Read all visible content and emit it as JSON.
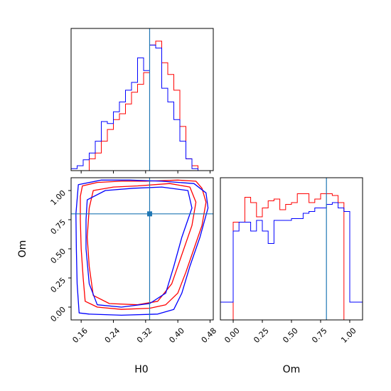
{
  "chart_data": {
    "type": "corner",
    "parameters": [
      "H0",
      "Om"
    ],
    "truth": {
      "H0": 0.33,
      "Om": 0.8
    },
    "colors": {
      "series_a": "#ff0000",
      "series_b": "#0000ff",
      "truth": "#1f77b4"
    },
    "axes": {
      "H0": {
        "label": "H0",
        "range": [
          0.135,
          0.488
        ],
        "ticks": [
          "0.16",
          "0.24",
          "0.32",
          "0.40",
          "0.48"
        ],
        "tick_values": [
          0.16,
          0.24,
          0.32,
          0.4,
          0.48
        ]
      },
      "Om": {
        "label": "Om",
        "range": [
          -0.11,
          1.11
        ],
        "ticks": [
          "0.00",
          "0.25",
          "0.50",
          "0.75",
          "1.00"
        ],
        "tick_values": [
          0.0,
          0.25,
          0.5,
          0.75,
          1.0
        ]
      }
    },
    "hist_H0": {
      "edges": [
        0.135,
        0.15,
        0.165,
        0.18,
        0.195,
        0.21,
        0.225,
        0.24,
        0.255,
        0.27,
        0.285,
        0.3,
        0.315,
        0.33,
        0.345,
        0.36,
        0.375,
        0.39,
        0.405,
        0.42,
        0.435,
        0.45,
        0.465,
        0.488
      ],
      "series": [
        {
          "color": "red",
          "counts": [
            0,
            0,
            0,
            12,
            18,
            30,
            42,
            52,
            58,
            68,
            80,
            88,
            100,
            128,
            132,
            110,
            98,
            82,
            45,
            12,
            5,
            0
          ]
        },
        {
          "color": "blue",
          "counts": [
            2,
            5,
            11,
            18,
            30,
            50,
            48,
            60,
            70,
            82,
            90,
            115,
            102,
            128,
            125,
            84,
            70,
            52,
            30,
            12,
            2,
            0
          ]
        }
      ],
      "ylim": [
        0,
        145
      ]
    },
    "hist_Om": {
      "edges": [
        -0.11,
        -0.05,
        0.0,
        0.05,
        0.1,
        0.15,
        0.2,
        0.25,
        0.3,
        0.35,
        0.4,
        0.45,
        0.5,
        0.55,
        0.6,
        0.65,
        0.7,
        0.75,
        0.8,
        0.85,
        0.9,
        0.95,
        1.0,
        1.05,
        1.11
      ],
      "series": [
        {
          "color": "red",
          "counts": [
            0,
            0,
            55,
            55,
            69,
            66,
            58,
            63,
            67,
            68,
            62,
            65,
            66,
            71,
            71,
            66,
            68,
            71,
            71,
            70,
            66,
            0,
            0,
            0
          ]
        },
        {
          "color": "blue",
          "counts": [
            10,
            10,
            50,
            55,
            55,
            50,
            56,
            50,
            43,
            56,
            56,
            56,
            57,
            57,
            60,
            61,
            63,
            63,
            65,
            66,
            63,
            61,
            10,
            10
          ]
        }
      ],
      "ylim": [
        0,
        80
      ]
    },
    "contours_2d": [
      {
        "color": "red",
        "level": "outer",
        "points": [
          [
            0.163,
            1.04
          ],
          [
            0.2,
            1.07
          ],
          [
            0.26,
            1.08
          ],
          [
            0.32,
            1.08
          ],
          [
            0.4,
            1.09
          ],
          [
            0.445,
            1.08
          ],
          [
            0.46,
            1.02
          ],
          [
            0.47,
            0.9
          ],
          [
            0.46,
            0.7
          ],
          [
            0.44,
            0.5
          ],
          [
            0.42,
            0.3
          ],
          [
            0.4,
            0.12
          ],
          [
            0.37,
            0.02
          ],
          [
            0.33,
            -0.01
          ],
          [
            0.26,
            -0.02
          ],
          [
            0.2,
            0.0
          ],
          [
            0.17,
            0.05
          ],
          [
            0.165,
            0.25
          ],
          [
            0.16,
            0.5
          ],
          [
            0.158,
            0.75
          ],
          [
            0.158,
            0.95
          ],
          [
            0.163,
            1.04
          ]
        ]
      },
      {
        "color": "red",
        "level": "inner",
        "points": [
          [
            0.19,
            1.0
          ],
          [
            0.24,
            1.03
          ],
          [
            0.3,
            1.04
          ],
          [
            0.38,
            1.06
          ],
          [
            0.43,
            1.03
          ],
          [
            0.445,
            0.9
          ],
          [
            0.435,
            0.7
          ],
          [
            0.41,
            0.45
          ],
          [
            0.385,
            0.2
          ],
          [
            0.35,
            0.05
          ],
          [
            0.3,
            0.02
          ],
          [
            0.23,
            0.03
          ],
          [
            0.19,
            0.1
          ],
          [
            0.18,
            0.35
          ],
          [
            0.175,
            0.6
          ],
          [
            0.18,
            0.85
          ],
          [
            0.19,
            1.0
          ]
        ]
      },
      {
        "color": "blue",
        "level": "outer",
        "points": [
          [
            0.153,
            1.05
          ],
          [
            0.21,
            1.09
          ],
          [
            0.28,
            1.09
          ],
          [
            0.36,
            1.08
          ],
          [
            0.44,
            1.06
          ],
          [
            0.47,
            0.98
          ],
          [
            0.475,
            0.85
          ],
          [
            0.455,
            0.6
          ],
          [
            0.43,
            0.35
          ],
          [
            0.41,
            0.12
          ],
          [
            0.39,
            -0.02
          ],
          [
            0.35,
            -0.06
          ],
          [
            0.26,
            -0.07
          ],
          [
            0.18,
            -0.06
          ],
          [
            0.155,
            -0.05
          ],
          [
            0.15,
            0.2
          ],
          [
            0.148,
            0.5
          ],
          [
            0.147,
            0.8
          ],
          [
            0.153,
            1.05
          ]
        ]
      },
      {
        "color": "blue",
        "level": "inner",
        "points": [
          [
            0.175,
            0.92
          ],
          [
            0.22,
            1.0
          ],
          [
            0.29,
            1.02
          ],
          [
            0.36,
            1.03
          ],
          [
            0.425,
            1.0
          ],
          [
            0.435,
            0.85
          ],
          [
            0.41,
            0.6
          ],
          [
            0.39,
            0.35
          ],
          [
            0.37,
            0.12
          ],
          [
            0.33,
            0.03
          ],
          [
            0.26,
            0.0
          ],
          [
            0.2,
            0.02
          ],
          [
            0.18,
            0.2
          ],
          [
            0.172,
            0.5
          ],
          [
            0.172,
            0.75
          ],
          [
            0.175,
            0.92
          ]
        ]
      }
    ]
  }
}
